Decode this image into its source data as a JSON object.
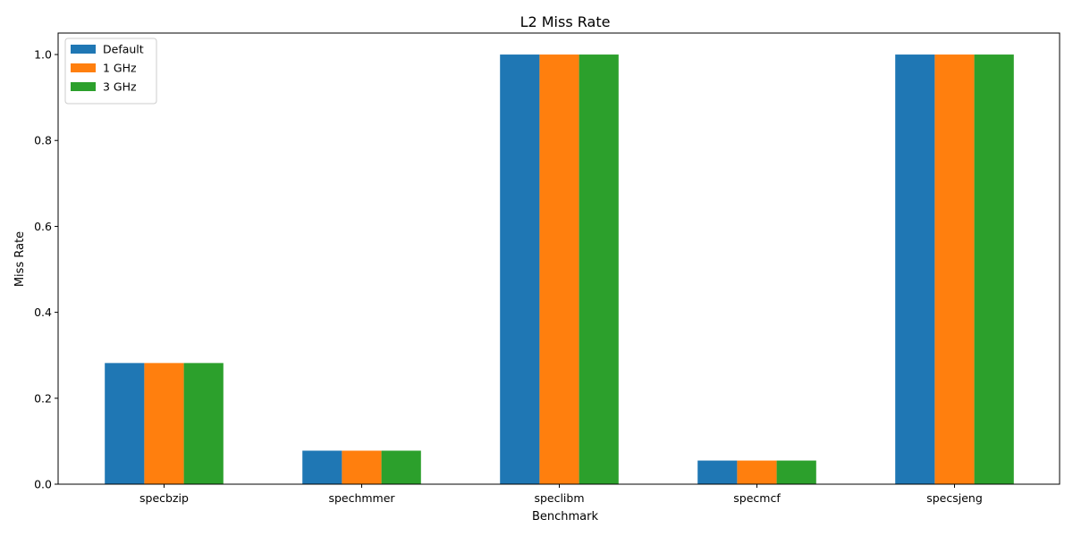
{
  "chart_data": {
    "type": "bar",
    "title": "L2 Miss Rate",
    "xlabel": "Benchmark",
    "ylabel": "Miss Rate",
    "categories": [
      "specbzip",
      "spechmmer",
      "speclibm",
      "specmcf",
      "specsjeng"
    ],
    "series": [
      {
        "name": "Default",
        "color": "#1f77b4",
        "values": [
          0.282,
          0.078,
          1.0,
          0.055,
          1.0
        ]
      },
      {
        "name": "1 GHz",
        "color": "#ff7f0e",
        "values": [
          0.282,
          0.078,
          1.0,
          0.055,
          1.0
        ]
      },
      {
        "name": "3 GHz",
        "color": "#2ca02c",
        "values": [
          0.282,
          0.078,
          1.0,
          0.055,
          1.0
        ]
      }
    ],
    "ylim": [
      0,
      1.05
    ],
    "yticks": [
      "0.0",
      "0.2",
      "0.4",
      "0.6",
      "0.8",
      "1.0"
    ],
    "grid": false,
    "legend_position": "top-left"
  }
}
